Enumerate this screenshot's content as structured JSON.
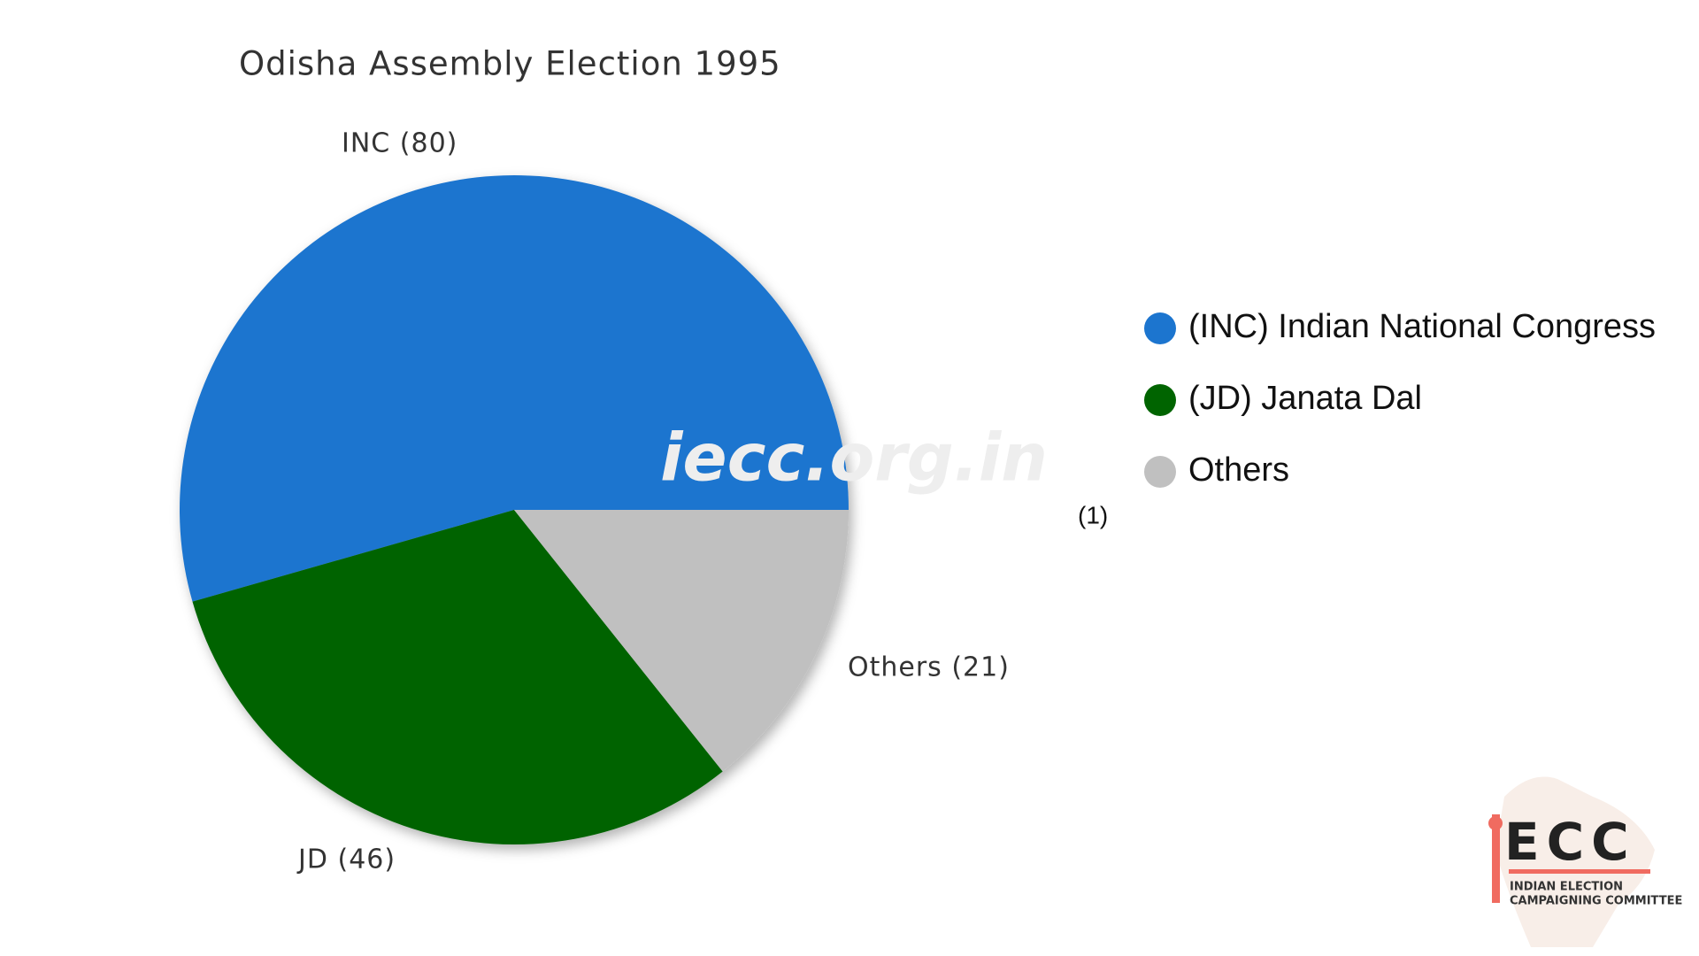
{
  "chart_data": {
    "type": "pie",
    "title": "Odisha Assembly Election 1995",
    "categories": [
      "INC",
      "JD",
      "Others"
    ],
    "values": [
      80,
      46,
      21
    ],
    "value_labels": [
      "INC (80)",
      "JD (46)",
      "Others (21)"
    ],
    "colors": [
      "#1c75cf",
      "#006400",
      "#c0c0c0"
    ],
    "legend": [
      "(INC) Indian National Congress",
      "(JD) Janata Dal",
      "Others"
    ],
    "note": "(1)",
    "watermark": "iecc.org.in"
  },
  "logo": {
    "mark": "ECC",
    "line1": "INDIAN ELECTION",
    "line2": "CAMPAIGNING COMMITTEE"
  }
}
